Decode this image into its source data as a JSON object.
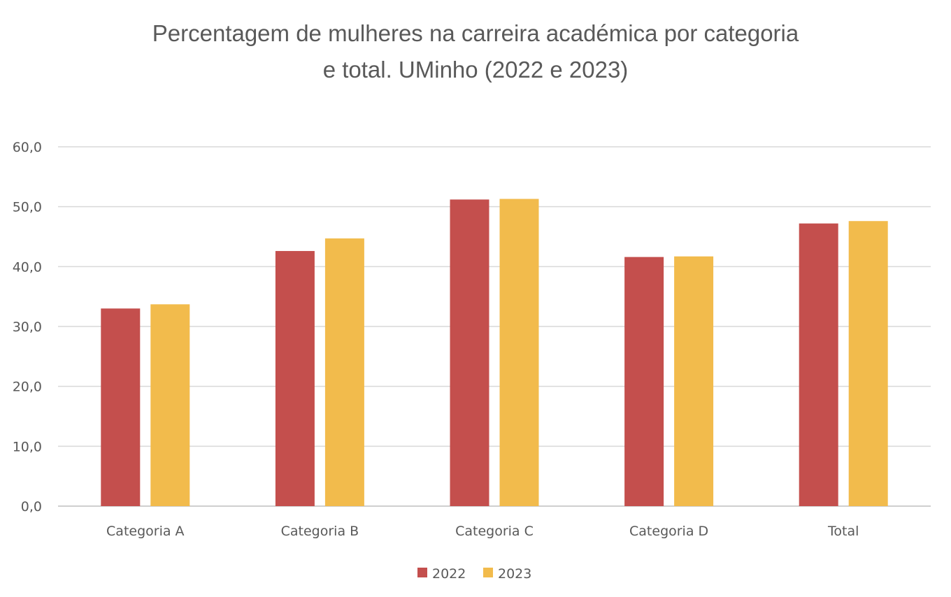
{
  "chart_data": {
    "type": "bar",
    "title_lines": [
      "Percentagem de mulheres na carreira académica por categoria",
      "e total. UMinho (2022 e 2023)"
    ],
    "categories": [
      "Categoria A",
      "Categoria B",
      "Categoria C",
      "Categoria D",
      "Total"
    ],
    "series": [
      {
        "name": "2022",
        "color": "#C44F4D",
        "values": [
          33.0,
          42.6,
          51.2,
          41.6,
          47.2
        ]
      },
      {
        "name": "2023",
        "color": "#F2BB4C",
        "values": [
          33.7,
          44.7,
          51.3,
          41.7,
          47.6
        ]
      }
    ],
    "ylim": [
      0,
      60
    ],
    "yticks": [
      "0,0",
      "10,0",
      "20,0",
      "30,0",
      "40,0",
      "50,0",
      "60,0"
    ],
    "grid": true,
    "legend": "bottom"
  }
}
